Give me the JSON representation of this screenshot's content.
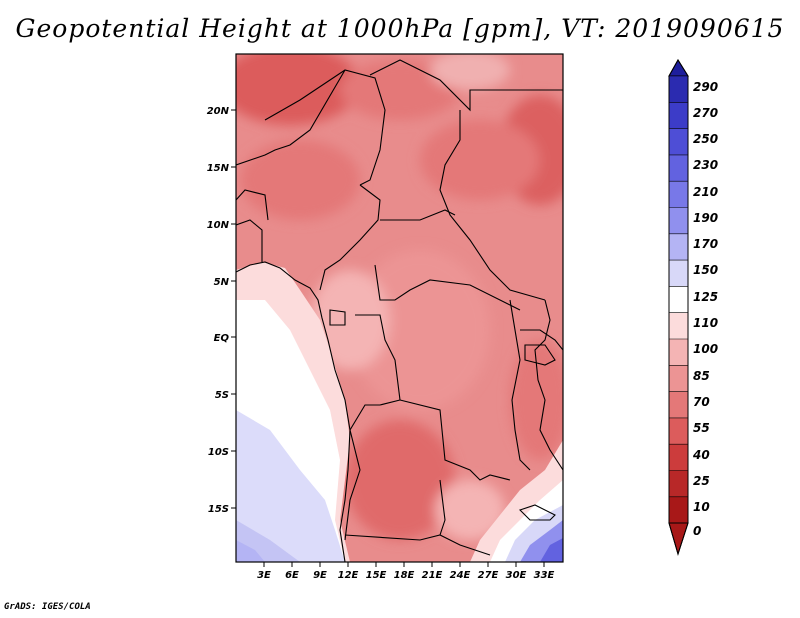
{
  "title": "Geopotential Height at 1000hPa [gpm], VT: 2019090615",
  "footer": "GrADS: IGES/COLA",
  "map": {
    "lat_labels": [
      "20N",
      "15N",
      "10N",
      "5N",
      "EQ",
      "5S",
      "10S",
      "15S"
    ],
    "lon_labels": [
      "3E",
      "6E",
      "9E",
      "12E",
      "15E",
      "18E",
      "21E",
      "24E",
      "27E",
      "30E",
      "33E"
    ]
  },
  "colorbar": {
    "levels": [
      "290",
      "270",
      "250",
      "230",
      "210",
      "190",
      "170",
      "150",
      "125",
      "110",
      "100",
      "85",
      "70",
      "55",
      "40",
      "25",
      "10",
      "0"
    ],
    "colors": [
      "#1e1e9c",
      "#2b2bb0",
      "#3c3cc8",
      "#4e4ed6",
      "#6262e0",
      "#7878e8",
      "#9090ee",
      "#b4b4f4",
      "#d8d8f8",
      "#ffffff",
      "#fcdcdc",
      "#f4b4b4",
      "#ec9494",
      "#e47878",
      "#dc5c5c",
      "#cc3c3c",
      "#b82828",
      "#a81818"
    ]
  },
  "chart_data": {
    "type": "heatmap",
    "title": "Geopotential Height at 1000hPa [gpm], VT: 2019090615",
    "variable": "Geopotential Height",
    "level": "1000hPa",
    "units": "gpm",
    "valid_time": "2019090615",
    "x_range_deg": [
      0,
      36
    ],
    "y_range_deg": [
      -20,
      24
    ],
    "contour_levels": [
      0,
      10,
      25,
      40,
      55,
      70,
      85,
      100,
      110,
      125,
      150,
      170,
      190,
      210,
      230,
      250,
      270,
      290
    ]
  }
}
